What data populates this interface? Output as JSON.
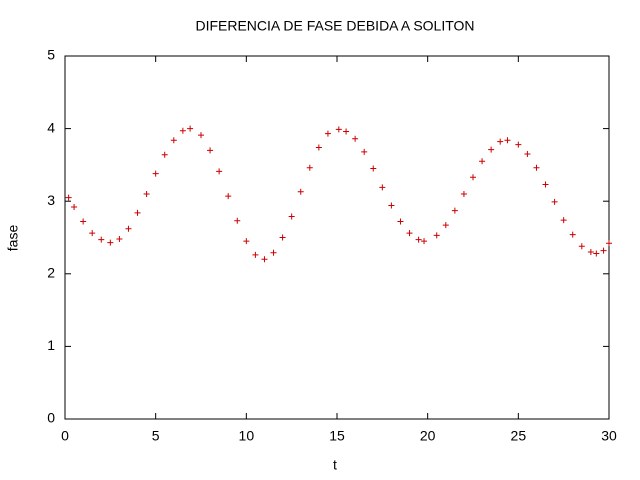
{
  "chart_data": {
    "type": "scatter",
    "title": "DIFERENCIA DE FASE DEBIDA A SOLITON",
    "x_label": "t",
    "y_label": "fase",
    "xlim": [
      0,
      30
    ],
    "ylim": [
      0,
      5
    ],
    "xticks": [
      0,
      5,
      10,
      15,
      20,
      25,
      30
    ],
    "yticks": [
      0,
      1,
      2,
      3,
      4,
      5
    ],
    "grid": false,
    "series": [
      {
        "color": "#cc0000",
        "x": [
          0.2,
          0.5,
          1.0,
          1.5,
          2.0,
          2.5,
          3.0,
          3.5,
          4.0,
          4.5,
          5.0,
          5.5,
          6.0,
          6.5,
          6.9,
          7.5,
          8.0,
          8.5,
          9.0,
          9.5,
          10.0,
          10.5,
          11.0,
          11.5,
          12.0,
          12.5,
          13.0,
          13.5,
          14.0,
          14.5,
          15.1,
          15.5,
          16.0,
          16.5,
          17.0,
          17.5,
          18.0,
          18.5,
          19.0,
          19.5,
          19.8,
          20.5,
          21.0,
          21.5,
          22.0,
          22.5,
          23.0,
          23.5,
          24.0,
          24.4,
          25.0,
          25.5,
          26.0,
          26.5,
          27.0,
          27.5,
          28.0,
          28.5,
          29.0,
          29.3,
          29.7,
          30.0
        ],
        "values": [
          3.05,
          2.92,
          2.72,
          2.56,
          2.47,
          2.43,
          2.48,
          2.62,
          2.84,
          3.1,
          3.38,
          3.64,
          3.84,
          3.97,
          4.0,
          3.91,
          3.7,
          3.41,
          3.07,
          2.73,
          2.45,
          2.26,
          2.2,
          2.29,
          2.5,
          2.79,
          3.13,
          3.46,
          3.74,
          3.93,
          3.99,
          3.96,
          3.86,
          3.68,
          3.45,
          3.19,
          2.94,
          2.72,
          2.56,
          2.47,
          2.45,
          2.53,
          2.67,
          2.87,
          3.1,
          3.33,
          3.55,
          3.71,
          3.82,
          3.84,
          3.78,
          3.65,
          3.46,
          3.23,
          2.99,
          2.74,
          2.54,
          2.38,
          2.3,
          2.28,
          2.32,
          2.42
        ]
      }
    ]
  }
}
